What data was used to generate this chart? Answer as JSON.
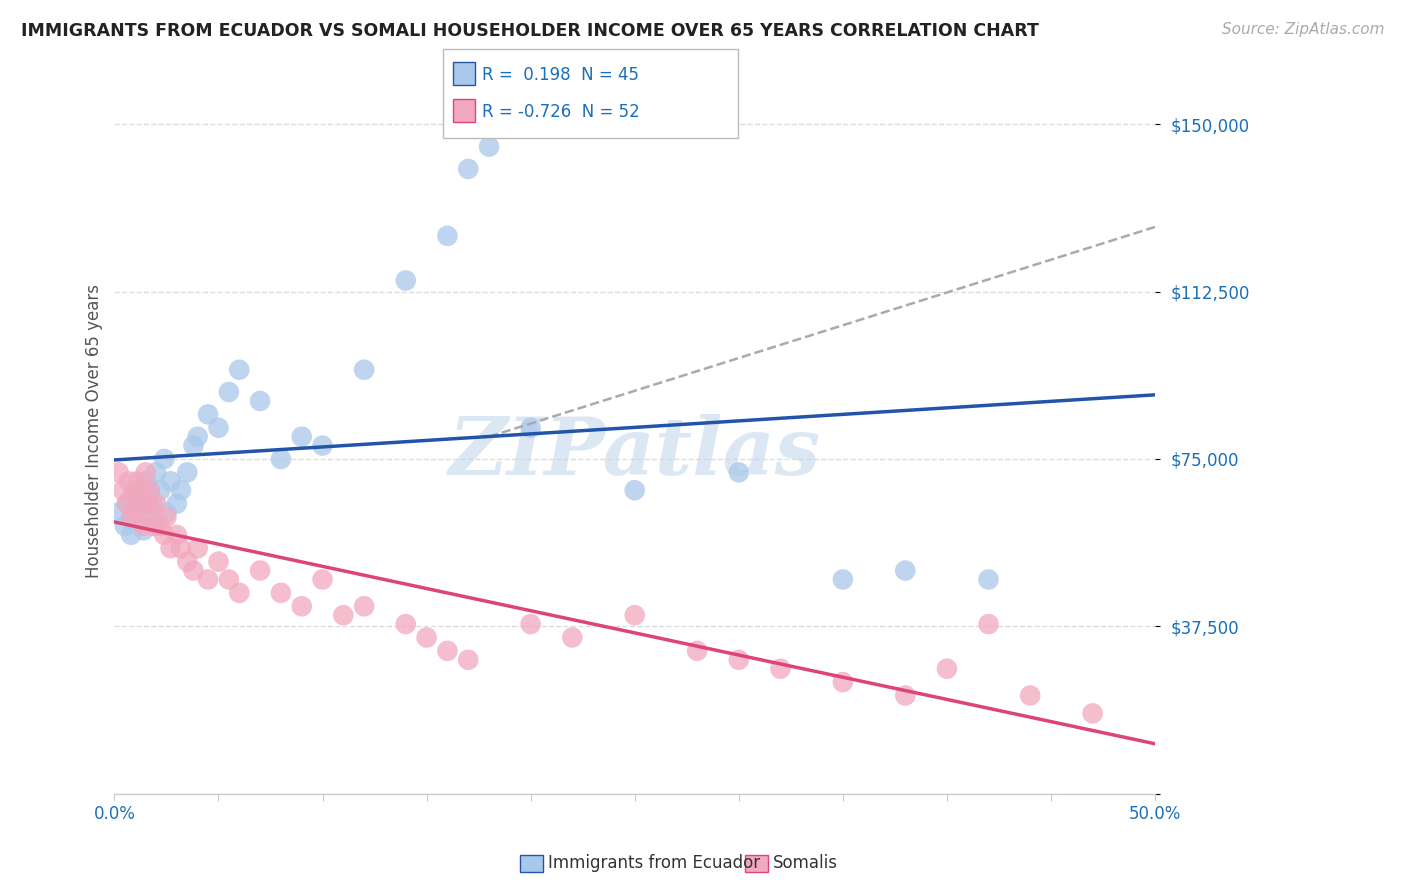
{
  "title": "IMMIGRANTS FROM ECUADOR VS SOMALI HOUSEHOLDER INCOME OVER 65 YEARS CORRELATION CHART",
  "source": "Source: ZipAtlas.com",
  "ylabel": "Householder Income Over 65 years",
  "xlim": [
    0.0,
    0.5
  ],
  "ylim": [
    0,
    162500
  ],
  "xticks": [
    0.0,
    0.05,
    0.1,
    0.15,
    0.2,
    0.25,
    0.3,
    0.35,
    0.4,
    0.45,
    0.5
  ],
  "xticklabels": [
    "0.0%",
    "",
    "",
    "",
    "",
    "",
    "",
    "",
    "",
    "",
    "50.0%"
  ],
  "yticks": [
    0,
    37500,
    75000,
    112500,
    150000
  ],
  "yticklabels": [
    "",
    "$37,500",
    "$75,000",
    "$112,500",
    "$150,000"
  ],
  "grid_color": "#dddddd",
  "background_color": "#ffffff",
  "ecuador_color": "#aac8ea",
  "somali_color": "#f2a8be",
  "ecuador_line_color": "#2255aa",
  "somali_line_color": "#dd4477",
  "dash_line_color": "#aaaaaa",
  "ecuador_R": 0.198,
  "ecuador_N": 45,
  "somali_R": -0.726,
  "somali_N": 52,
  "ecuador_scatter_x": [
    0.002,
    0.005,
    0.006,
    0.008,
    0.009,
    0.01,
    0.011,
    0.012,
    0.013,
    0.014,
    0.015,
    0.016,
    0.017,
    0.018,
    0.019,
    0.02,
    0.022,
    0.024,
    0.025,
    0.027,
    0.03,
    0.032,
    0.035,
    0.038,
    0.04,
    0.045,
    0.05,
    0.055,
    0.06,
    0.07,
    0.08,
    0.09,
    0.1,
    0.12,
    0.14,
    0.16,
    0.17,
    0.175,
    0.18,
    0.2,
    0.25,
    0.3,
    0.35,
    0.38,
    0.42
  ],
  "ecuador_scatter_y": [
    63000,
    60000,
    65000,
    58000,
    62000,
    64000,
    67000,
    61000,
    66000,
    59000,
    70000,
    63000,
    68000,
    65000,
    60000,
    72000,
    68000,
    75000,
    63000,
    70000,
    65000,
    68000,
    72000,
    78000,
    80000,
    85000,
    82000,
    90000,
    95000,
    88000,
    75000,
    80000,
    78000,
    95000,
    115000,
    125000,
    140000,
    155000,
    145000,
    82000,
    68000,
    72000,
    48000,
    50000,
    48000
  ],
  "somali_scatter_x": [
    0.002,
    0.004,
    0.006,
    0.007,
    0.008,
    0.009,
    0.01,
    0.011,
    0.012,
    0.013,
    0.014,
    0.015,
    0.016,
    0.017,
    0.018,
    0.019,
    0.02,
    0.022,
    0.024,
    0.025,
    0.027,
    0.03,
    0.032,
    0.035,
    0.038,
    0.04,
    0.045,
    0.05,
    0.055,
    0.06,
    0.07,
    0.08,
    0.09,
    0.1,
    0.11,
    0.12,
    0.14,
    0.15,
    0.16,
    0.17,
    0.2,
    0.22,
    0.25,
    0.28,
    0.3,
    0.32,
    0.35,
    0.38,
    0.4,
    0.42,
    0.44,
    0.47
  ],
  "somali_scatter_y": [
    72000,
    68000,
    65000,
    70000,
    62000,
    67000,
    63000,
    70000,
    65000,
    68000,
    60000,
    72000,
    65000,
    68000,
    63000,
    60000,
    65000,
    60000,
    58000,
    62000,
    55000,
    58000,
    55000,
    52000,
    50000,
    55000,
    48000,
    52000,
    48000,
    45000,
    50000,
    45000,
    42000,
    48000,
    40000,
    42000,
    38000,
    35000,
    32000,
    30000,
    38000,
    35000,
    40000,
    32000,
    30000,
    28000,
    25000,
    22000,
    28000,
    38000,
    22000,
    18000
  ],
  "watermark_text": "ZIPatlas",
  "watermark_color": "#c5d8ee",
  "watermark_alpha": 0.6
}
